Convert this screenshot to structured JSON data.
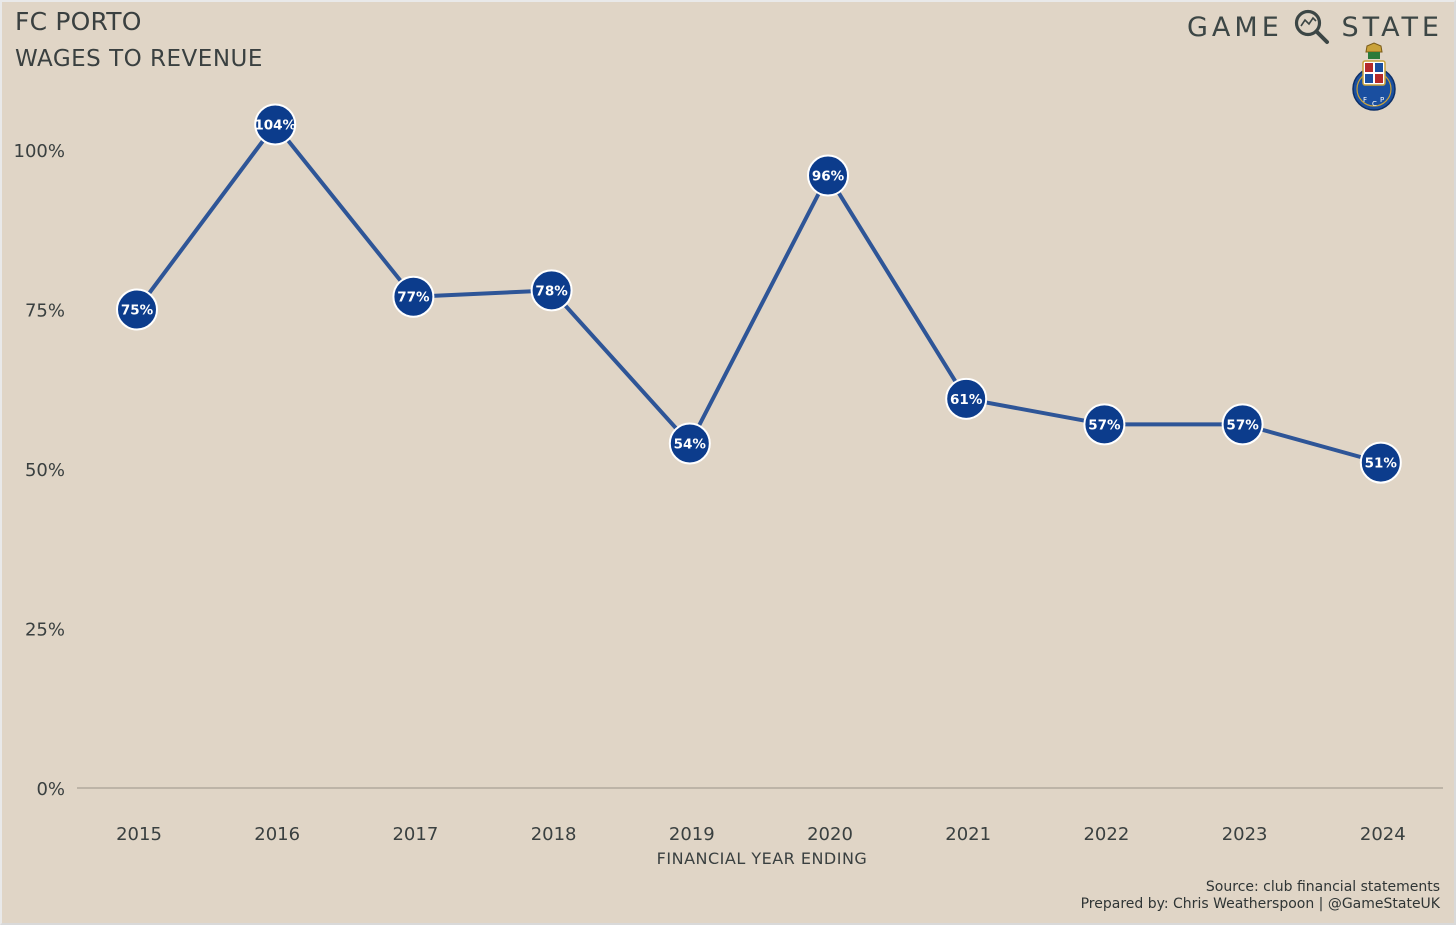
{
  "header": {
    "title": "FC PORTO",
    "subtitle": "WAGES TO REVENUE"
  },
  "brand": {
    "left_word": "GAME",
    "right_word": "STATE",
    "icon": "magnifier-icon",
    "crest_icon": "fc-porto-crest-icon"
  },
  "footer": {
    "source": "Source: club financial statements",
    "prepared_by": "Prepared by: Chris Weatherspoon | @GameStateUK"
  },
  "colors": {
    "background": "#e0d5c6",
    "line": "#2e5597",
    "marker": "#0c3c8c",
    "marker_stroke": "#ffffff",
    "text": "#3a4040"
  },
  "chart_data": {
    "type": "line",
    "title": "FC PORTO",
    "subtitle": "WAGES TO REVENUE",
    "xlabel": "FINANCIAL YEAR ENDING",
    "ylabel": "",
    "categories": [
      "2015",
      "2016",
      "2017",
      "2018",
      "2019",
      "2020",
      "2021",
      "2022",
      "2023",
      "2024"
    ],
    "series": [
      {
        "values": [
          75,
          104,
          77,
          78,
          54,
          96,
          61,
          57,
          57,
          51
        ],
        "labels": [
          "75%",
          "104%",
          "77%",
          "78%",
          "54%",
          "96%",
          "61%",
          "57%",
          "57%",
          "51%"
        ]
      }
    ],
    "ylim": [
      0,
      108
    ],
    "yticks": [
      0,
      25,
      50,
      75,
      100
    ],
    "ytick_labels": [
      "0%",
      "25%",
      "50%",
      "75%",
      "100%"
    ],
    "grid": false,
    "legend": "none"
  }
}
